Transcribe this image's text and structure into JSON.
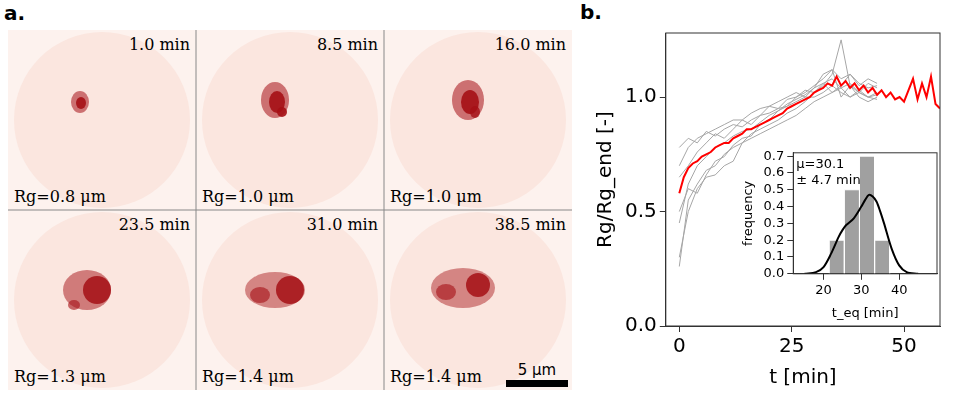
{
  "panels": {
    "a": {
      "label": "a.",
      "frames": [
        {
          "time": "1.0 min",
          "rg": "Rg=0.8 μm"
        },
        {
          "time": "8.5 min",
          "rg": "Rg=1.0 μm"
        },
        {
          "time": "16.0 min",
          "rg": "Rg=1.0 μm"
        },
        {
          "time": "23.5 min",
          "rg": "Rg=1.3 μm"
        },
        {
          "time": "31.0 min",
          "rg": "Rg=1.4 μm"
        },
        {
          "time": "38.5 min",
          "rg": "Rg=1.4 μm"
        }
      ],
      "scale_bar": "5 μm"
    },
    "b": {
      "label": "b."
    }
  },
  "chart_data": [
    {
      "type": "line",
      "x_label": "t [min]",
      "y_label": "Rg/Rg_end [-]",
      "xlim": [
        -3,
        58
      ],
      "ylim": [
        0,
        1.28
      ],
      "xticks": [
        0,
        25,
        50
      ],
      "yticks": [
        {
          "value": 0,
          "label": "0.0"
        },
        {
          "value": 0.5,
          "label": "0.5"
        },
        {
          "value": 1,
          "label": "1.0"
        }
      ],
      "grid": false,
      "series": [
        {
          "color": "#a6a6a6",
          "x": [
            0,
            2,
            4,
            6,
            8,
            10,
            12,
            14,
            16,
            18,
            20,
            22,
            24,
            26,
            28,
            30,
            32,
            34,
            36,
            38,
            40,
            42,
            44
          ],
          "values": [
            0.26,
            0.55,
            0.62,
            0.68,
            0.7,
            0.75,
            0.78,
            0.8,
            0.84,
            0.86,
            0.88,
            0.9,
            0.93,
            0.95,
            0.98,
            1.02,
            1.05,
            1.1,
            1.25,
            1.05,
            1.0,
            0.98,
            1.0
          ]
        },
        {
          "color": "#a6a6a6",
          "x": [
            0,
            2,
            4,
            6,
            8,
            10,
            12,
            14,
            16,
            18,
            20,
            22,
            24,
            26,
            28,
            30,
            32,
            34,
            36,
            38,
            40,
            42,
            44
          ],
          "values": [
            0.5,
            0.6,
            0.58,
            0.66,
            0.72,
            0.74,
            0.79,
            0.82,
            0.83,
            0.88,
            0.9,
            0.94,
            0.96,
            1.0,
            1.02,
            1.05,
            1.08,
            1.12,
            1.0,
            1.05,
            1.02,
            1.06,
            1.04
          ]
        },
        {
          "color": "#a6a6a6",
          "x": [
            0,
            2,
            4,
            6,
            8,
            10,
            12,
            14,
            16,
            18,
            20,
            22,
            24,
            26,
            28,
            30,
            32,
            34,
            36,
            38,
            40,
            42,
            44
          ],
          "values": [
            0.78,
            0.82,
            0.8,
            0.85,
            0.83,
            0.86,
            0.88,
            0.87,
            0.9,
            0.92,
            0.93,
            0.95,
            0.96,
            0.98,
            1.0,
            1.0,
            1.02,
            1.05,
            1.02,
            1.0,
            1.03,
            1.0,
            1.01
          ]
        },
        {
          "color": "#a6a6a6",
          "x": [
            0,
            2,
            4,
            6,
            8,
            10,
            12,
            14,
            16,
            18,
            20,
            22,
            24,
            26,
            28,
            30,
            32,
            34,
            36,
            38,
            40,
            42,
            44
          ],
          "values": [
            0.65,
            0.7,
            0.76,
            0.8,
            0.84,
            0.82,
            0.86,
            0.9,
            0.88,
            0.92,
            0.96,
            0.95,
            0.99,
            1.0,
            1.03,
            1.02,
            1.06,
            1.08,
            1.04,
            1.06,
            1.02,
            1.0,
            1.02
          ]
        },
        {
          "color": "#a6a6a6",
          "x": [
            0,
            2,
            4,
            6,
            8,
            10,
            12,
            14,
            16,
            18,
            20,
            22,
            24,
            26,
            28,
            30,
            32,
            34,
            36,
            38,
            40,
            42,
            44
          ],
          "values": [
            0.3,
            0.5,
            0.6,
            0.65,
            0.66,
            0.7,
            0.72,
            0.8,
            0.82,
            0.84,
            0.86,
            0.88,
            0.9,
            0.92,
            0.95,
            0.98,
            1.0,
            1.02,
            1.05,
            1.1,
            1.05,
            1.08,
            1.06
          ]
        },
        {
          "color": "#a6a6a6",
          "x": [
            0,
            2,
            4,
            6,
            8,
            10,
            12,
            14,
            16,
            18,
            20,
            22,
            24,
            26,
            28,
            30,
            32,
            34,
            36,
            38,
            40,
            42,
            44
          ],
          "values": [
            0.7,
            0.78,
            0.82,
            0.84,
            0.86,
            0.88,
            0.9,
            0.9,
            0.93,
            0.95,
            0.96,
            0.98,
            1.0,
            1.02,
            1.0,
            1.04,
            1.06,
            1.02,
            1.04,
            1.0,
            1.02,
            1.0,
            0.99
          ]
        },
        {
          "color": "#a6a6a6",
          "x": [
            0,
            2,
            4,
            6,
            8,
            10,
            12,
            14,
            16,
            18,
            20,
            22,
            24,
            26,
            28,
            30,
            32,
            34,
            36,
            38,
            40,
            42,
            44
          ],
          "values": [
            0.45,
            0.62,
            0.7,
            0.74,
            0.78,
            0.8,
            0.83,
            0.85,
            0.86,
            0.89,
            0.92,
            0.94,
            0.97,
            0.99,
            1.01,
            1.04,
            1.1,
            1.12,
            1.08,
            1.1,
            1.06,
            1.04,
            1.05
          ]
        },
        {
          "color": "#ff0000",
          "x": [
            0,
            1,
            2,
            3,
            4,
            5,
            6,
            7,
            8,
            9,
            10,
            11,
            12,
            13,
            14,
            15,
            16,
            17,
            18,
            19,
            20,
            21,
            22,
            23,
            24,
            25,
            26,
            27,
            28,
            29,
            30,
            31,
            32,
            33,
            34,
            35,
            36,
            37,
            38,
            39,
            40,
            41,
            42,
            43,
            44,
            45,
            46,
            47,
            48,
            49,
            50,
            51,
            52,
            53,
            54,
            55,
            56,
            57,
            58
          ],
          "values": [
            0.58,
            0.65,
            0.69,
            0.71,
            0.72,
            0.74,
            0.75,
            0.76,
            0.78,
            0.79,
            0.8,
            0.8,
            0.82,
            0.83,
            0.84,
            0.86,
            0.86,
            0.87,
            0.88,
            0.89,
            0.9,
            0.91,
            0.92,
            0.93,
            0.95,
            0.96,
            0.97,
            0.98,
            0.99,
            1.0,
            1.02,
            1.03,
            1.04,
            1.06,
            1.05,
            1.09,
            1.05,
            1.07,
            1.04,
            1.06,
            1.03,
            1.05,
            1.02,
            1.04,
            1.01,
            1.03,
            1.0,
            1.02,
            0.99,
            1.0,
            0.98,
            1.03,
            1.08,
            0.99,
            1.06,
            1.0,
            1.09,
            0.97,
            0.95
          ]
        }
      ]
    },
    {
      "type": "histogram",
      "x_label": "t_eq [min]",
      "y_label": "frequency",
      "annotation": [
        "μ=30.1",
        "± 4.7 min"
      ],
      "bins": [
        21.5,
        25.5,
        29.5,
        33.5,
        37.5
      ],
      "counts": [
        0.2,
        0.5,
        0.7,
        0.2
      ],
      "color": "#a0a0a0",
      "kde": {
        "color": "#000000",
        "x": [
          15,
          18,
          20,
          22,
          24,
          25,
          26,
          28,
          30,
          31,
          32,
          33,
          34,
          35,
          36,
          38,
          40,
          42,
          45
        ],
        "values": [
          0.0,
          0.01,
          0.04,
          0.12,
          0.22,
          0.26,
          0.29,
          0.33,
          0.4,
          0.44,
          0.47,
          0.46,
          0.43,
          0.37,
          0.3,
          0.15,
          0.05,
          0.01,
          0.0
        ]
      },
      "xlim": [
        12,
        50
      ],
      "ylim": [
        0,
        0.72
      ],
      "xticks": [
        20,
        30,
        40
      ],
      "yticks": [
        {
          "value": 0,
          "label": "0.0"
        },
        {
          "value": 0.1,
          "label": "0.1"
        },
        {
          "value": 0.2,
          "label": "0.2"
        },
        {
          "value": 0.3,
          "label": "0.3"
        },
        {
          "value": 0.4,
          "label": "0.4"
        },
        {
          "value": 0.5,
          "label": "0.5"
        },
        {
          "value": 0.6,
          "label": "0.6"
        },
        {
          "value": 0.7,
          "label": "0.7"
        }
      ],
      "grid": false
    }
  ]
}
